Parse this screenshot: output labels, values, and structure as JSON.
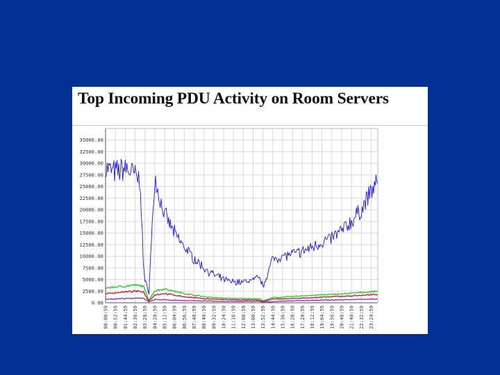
{
  "slide": {
    "background": "#033093"
  },
  "chart_data": {
    "type": "line",
    "title": "Top Incoming PDU Activity on Room Servers",
    "xlabel": "",
    "ylabel": "",
    "ylim": [
      0,
      37500
    ],
    "y_ticks": [
      "35000.00",
      "32500.00",
      "30000.00",
      "27500.00",
      "25000.00",
      "22500.00",
      "20000.00",
      "17500.00",
      "15000.00",
      "12500.00",
      "10000.00",
      "7500.00",
      "5000.00",
      "2500.00",
      "0.00"
    ],
    "x_ticks": [
      "00:00:59",
      "00:52:59",
      "01:44:59",
      "02:36:59",
      "03:28:59",
      "04:20:59",
      "05:12:59",
      "06:04:59",
      "06:56:59",
      "07:48:59",
      "08:40:59",
      "09:32:59",
      "10:24:59",
      "11:16:59",
      "12:08:59",
      "13:00:59",
      "13:52:59",
      "14:44:59",
      "15:36:59",
      "16:28:59",
      "17:20:59",
      "18:12:59",
      "19:04:59",
      "19:56:59",
      "20:48:59",
      "21:40:59",
      "22:32:59",
      "23:24:59"
    ],
    "grid": true,
    "legend": "none",
    "series": [
      {
        "color": "#1a1ad6",
        "x": [
          "00:00:59",
          "00:52:59",
          "01:44:59",
          "02:36:59",
          "03:05:00",
          "03:20:00",
          "03:28:59",
          "03:50:00",
          "04:20:59",
          "04:50:00",
          "05:12:59",
          "06:04:59",
          "06:56:59",
          "07:48:59",
          "08:40:59",
          "09:32:59",
          "10:24:59",
          "11:16:59",
          "12:08:59",
          "13:00:59",
          "13:35:00",
          "13:52:59",
          "14:44:59",
          "15:36:59",
          "16:28:59",
          "17:20:59",
          "18:12:59",
          "19:04:59",
          "19:56:59",
          "20:48:59",
          "21:40:59",
          "22:32:59",
          "23:24:59",
          "23:59:00"
        ],
        "values": [
          29000,
          28000,
          29000,
          27500,
          26000,
          9000,
          4500,
          2500,
          27000,
          22000,
          19000,
          15000,
          12000,
          9500,
          7500,
          6000,
          5000,
          4500,
          4500,
          5000,
          5500,
          3500,
          9500,
          10000,
          10500,
          11000,
          12000,
          13000,
          14000,
          15500,
          17500,
          20000,
          24000,
          25500
        ]
      },
      {
        "color": "#22cc22",
        "x": [
          "00:00:59",
          "02:36:59",
          "03:20:00",
          "03:50:00",
          "04:20:59",
          "05:12:59",
          "06:56:59",
          "08:40:59",
          "10:24:59",
          "12:08:59",
          "13:35:00",
          "13:52:59",
          "14:44:59",
          "17:20:59",
          "19:56:59",
          "22:32:59",
          "23:59:00"
        ],
        "values": [
          3200,
          3800,
          3600,
          600,
          2600,
          3000,
          2000,
          1300,
          1000,
          900,
          900,
          400,
          1100,
          1500,
          1800,
          2200,
          2500
        ]
      },
      {
        "color": "#cc1a1a",
        "x": [
          "00:00:59",
          "02:36:59",
          "03:20:00",
          "03:50:00",
          "04:20:59",
          "05:12:59",
          "06:56:59",
          "08:40:59",
          "10:24:59",
          "12:08:59",
          "13:35:00",
          "13:52:59",
          "14:44:59",
          "17:20:59",
          "19:56:59",
          "22:32:59",
          "23:59:00"
        ],
        "values": [
          2000,
          2500,
          2400,
          400,
          1700,
          2000,
          1300,
          900,
          700,
          600,
          600,
          250,
          800,
          1000,
          1300,
          1600,
          1800
        ]
      },
      {
        "color": "#a020c0",
        "x": [
          "00:00:59",
          "02:36:59",
          "03:20:00",
          "03:50:00",
          "04:20:59",
          "06:56:59",
          "10:24:59",
          "13:35:00",
          "13:52:59",
          "17:20:59",
          "23:59:00"
        ],
        "values": [
          800,
          1000,
          1000,
          200,
          700,
          500,
          300,
          300,
          150,
          500,
          800
        ]
      }
    ]
  }
}
